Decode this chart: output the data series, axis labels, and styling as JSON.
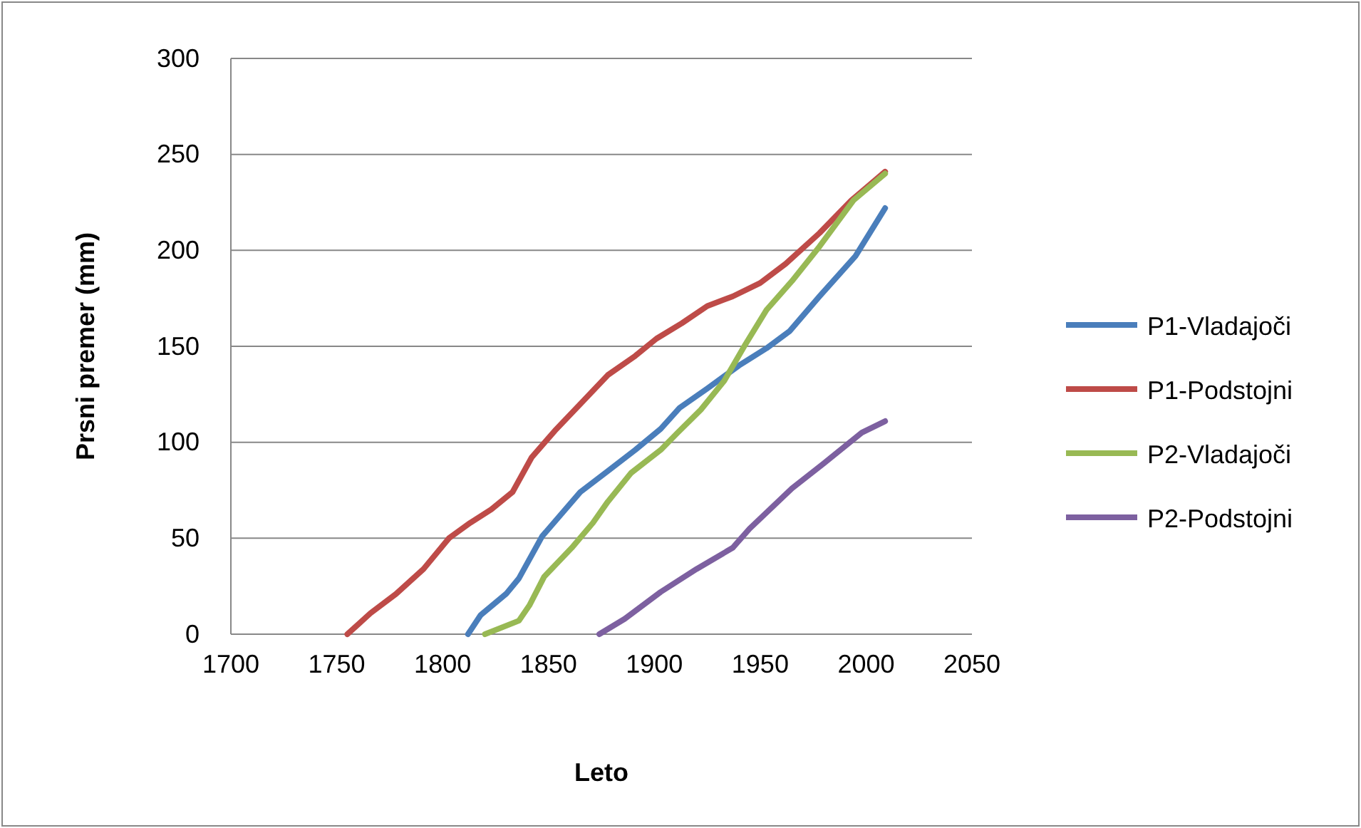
{
  "chart_data": {
    "type": "line",
    "xlabel": "Leto",
    "ylabel": "Prsni premer (mm)",
    "xlim": [
      1700,
      2050
    ],
    "xticks": [
      1700,
      1750,
      1800,
      1850,
      1900,
      1950,
      2000,
      2050
    ],
    "ylim": [
      0,
      300
    ],
    "yticks": [
      0,
      50,
      100,
      150,
      200,
      250,
      300
    ],
    "grid": "y",
    "legend": "right",
    "marker": "none",
    "line_style": "solid",
    "series": [
      {
        "name": "P1-Vladajoči",
        "color": "#4a7ebb",
        "x": [
          1812,
          1818,
          1830,
          1836,
          1847,
          1865,
          1878,
          1891,
          1903,
          1912,
          1925,
          1940,
          1953,
          1964,
          1978,
          1995,
          2009
        ],
        "values": [
          0,
          10,
          21,
          29,
          51,
          74,
          85,
          96,
          107,
          118,
          128,
          140,
          149,
          158,
          176,
          197,
          222
        ]
      },
      {
        "name": "P1-Podstojni",
        "color": "#be4b48",
        "x": [
          1755,
          1766,
          1778,
          1791,
          1803,
          1813,
          1823,
          1833,
          1842,
          1853,
          1866,
          1878,
          1891,
          1901,
          1913,
          1925,
          1937,
          1950,
          1962,
          1978,
          1993,
          2009
        ],
        "values": [
          0,
          11,
          21,
          34,
          50,
          58,
          65,
          74,
          92,
          106,
          121,
          135,
          145,
          154,
          162,
          171,
          176,
          183,
          193,
          209,
          226,
          241
        ]
      },
      {
        "name": "P2-Vladajoči",
        "color": "#98b954",
        "x": [
          1820,
          1836,
          1841,
          1848,
          1861,
          1871,
          1878,
          1889,
          1903,
          1911,
          1922,
          1933,
          1943,
          1953,
          1965,
          1978,
          1994,
          2009
        ],
        "values": [
          0,
          7,
          15,
          30,
          45,
          58,
          69,
          84,
          96,
          105,
          117,
          132,
          151,
          169,
          184,
          202,
          226,
          240
        ]
      },
      {
        "name": "P2-Podstojni",
        "color": "#7d60a0",
        "x": [
          1874,
          1886,
          1903,
          1920,
          1937,
          1945,
          1965,
          1980,
          1998,
          2009
        ],
        "values": [
          0,
          8,
          22,
          34,
          45,
          55,
          76,
          89,
          105,
          111
        ]
      }
    ]
  }
}
